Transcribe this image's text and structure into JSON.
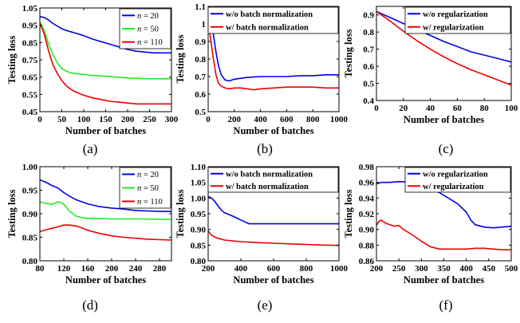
{
  "colors": {
    "blue": "#0000ee",
    "green": "#22ee22",
    "red": "#ee0000",
    "axis": "#000000"
  },
  "chart_data": [
    {
      "id": "a",
      "caption": "(a)",
      "type": "line",
      "xlabel": "Number of batches",
      "ylabel": "Testing loss",
      "xlim": [
        0,
        300
      ],
      "ylim": [
        0.45,
        1.05
      ],
      "xticks": [
        "0",
        "50",
        "100",
        "150",
        "200",
        "250",
        "300"
      ],
      "yticks": [
        "0.45",
        "0.55",
        "0.65",
        "0.75",
        "0.85",
        "0.95",
        "1.05"
      ],
      "legend_position": "top-right",
      "series": [
        {
          "name": "n = 20",
          "legend_italic_var": "n",
          "legend_rest": " = 20",
          "color": "blue",
          "x": [
            0,
            10,
            20,
            30,
            40,
            50,
            60,
            80,
            100,
            120,
            140,
            160,
            180,
            200,
            220,
            240,
            260,
            280,
            300
          ],
          "y": [
            1.0,
            0.995,
            0.98,
            0.96,
            0.945,
            0.93,
            0.92,
            0.905,
            0.89,
            0.87,
            0.855,
            0.84,
            0.825,
            0.81,
            0.8,
            0.795,
            0.79,
            0.79,
            0.79
          ]
        },
        {
          "name": "n = 50",
          "legend_italic_var": "n",
          "legend_rest": " = 50",
          "color": "green",
          "x": [
            0,
            10,
            20,
            30,
            40,
            50,
            60,
            70,
            80,
            100,
            120,
            150,
            200,
            250,
            300
          ],
          "y": [
            0.97,
            0.92,
            0.84,
            0.78,
            0.73,
            0.7,
            0.685,
            0.675,
            0.67,
            0.665,
            0.66,
            0.655,
            0.645,
            0.64,
            0.64
          ]
        },
        {
          "name": "n = 110",
          "legend_italic_var": "n",
          "legend_rest": " = 110",
          "color": "red",
          "x": [
            0,
            10,
            20,
            30,
            40,
            50,
            60,
            70,
            80,
            90,
            100,
            120,
            140,
            160,
            180,
            200,
            220,
            240,
            260,
            280,
            300
          ],
          "y": [
            0.96,
            0.9,
            0.8,
            0.72,
            0.67,
            0.63,
            0.6,
            0.58,
            0.565,
            0.555,
            0.545,
            0.53,
            0.52,
            0.51,
            0.505,
            0.5,
            0.495,
            0.495,
            0.495,
            0.495,
            0.495
          ]
        }
      ]
    },
    {
      "id": "b",
      "caption": "(b)",
      "type": "line",
      "xlabel": "Number of batches",
      "ylabel": "Testing loss",
      "xlim": [
        0,
        1000
      ],
      "ylim": [
        0.5,
        1.1
      ],
      "xticks": [
        "0",
        "200",
        "400",
        "600",
        "800",
        "1000"
      ],
      "yticks": [
        "0.5",
        "0.6",
        "0.7",
        "0.8",
        "0.9",
        "1",
        "1.1"
      ],
      "legend_position": "top-right",
      "series": [
        {
          "name": "w/o batch normalization",
          "color": "blue",
          "x": [
            0,
            20,
            40,
            60,
            80,
            100,
            130,
            160,
            200,
            250,
            300,
            400,
            500,
            600,
            700,
            800,
            900,
            1000
          ],
          "y": [
            1.04,
            1.01,
            0.94,
            0.84,
            0.76,
            0.71,
            0.68,
            0.675,
            0.685,
            0.69,
            0.695,
            0.7,
            0.7,
            0.7,
            0.705,
            0.705,
            0.71,
            0.71
          ]
        },
        {
          "name": "w/ batch normalization",
          "color": "red",
          "x": [
            0,
            20,
            40,
            60,
            80,
            100,
            130,
            160,
            200,
            250,
            300,
            350,
            400,
            500,
            600,
            700,
            800,
            900,
            1000
          ],
          "y": [
            1.0,
            0.91,
            0.8,
            0.71,
            0.66,
            0.645,
            0.635,
            0.63,
            0.635,
            0.635,
            0.63,
            0.625,
            0.63,
            0.635,
            0.64,
            0.64,
            0.64,
            0.635,
            0.635
          ]
        }
      ]
    },
    {
      "id": "c",
      "caption": "(c)",
      "type": "line",
      "xlabel": "Number of batches",
      "ylabel": "Testing loss",
      "xlim": [
        0,
        100
      ],
      "ylim": [
        0.4,
        0.95
      ],
      "xticks": [
        "0",
        "20",
        "40",
        "60",
        "80",
        "100"
      ],
      "yticks": [
        "0.4",
        "0.5",
        "0.6",
        "0.7",
        "0.8",
        "0.9"
      ],
      "legend_position": "top-right",
      "series": [
        {
          "name": "w/o regularization",
          "color": "blue",
          "x": [
            0,
            10,
            20,
            30,
            40,
            50,
            60,
            70,
            80,
            90,
            100
          ],
          "y": [
            0.92,
            0.885,
            0.85,
            0.815,
            0.78,
            0.745,
            0.715,
            0.685,
            0.665,
            0.645,
            0.625
          ]
        },
        {
          "name": "w/ regularization",
          "color": "red",
          "x": [
            0,
            10,
            20,
            30,
            40,
            50,
            60,
            70,
            80,
            90,
            100
          ],
          "y": [
            0.92,
            0.865,
            0.805,
            0.75,
            0.7,
            0.655,
            0.615,
            0.58,
            0.55,
            0.52,
            0.49
          ]
        }
      ]
    },
    {
      "id": "d",
      "caption": "(d)",
      "type": "line",
      "xlabel": "Number of batches",
      "ylabel": "Testing loss",
      "xlim": [
        80,
        300
      ],
      "ylim": [
        0.8,
        1.0
      ],
      "xticks": [
        "80",
        "120",
        "160",
        "200",
        "240",
        "280"
      ],
      "yticks": [
        "0.80",
        "0.85",
        "0.90",
        "0.95",
        "1.00"
      ],
      "legend_position": "top-right",
      "series": [
        {
          "name": "n = 20",
          "legend_italic_var": "n",
          "legend_rest": " = 20",
          "color": "blue",
          "x": [
            80,
            90,
            100,
            110,
            120,
            130,
            140,
            160,
            180,
            200,
            220,
            240,
            260,
            280,
            300
          ],
          "y": [
            0.972,
            0.967,
            0.96,
            0.955,
            0.945,
            0.937,
            0.93,
            0.921,
            0.915,
            0.912,
            0.91,
            0.907,
            0.906,
            0.905,
            0.905
          ]
        },
        {
          "name": "n = 50",
          "legend_italic_var": "n",
          "legend_rest": " = 50",
          "color": "green",
          "x": [
            80,
            90,
            100,
            110,
            115,
            120,
            130,
            140,
            150,
            160,
            180,
            200,
            240,
            280,
            300
          ],
          "y": [
            0.925,
            0.922,
            0.92,
            0.925,
            0.924,
            0.92,
            0.905,
            0.895,
            0.892,
            0.89,
            0.89,
            0.889,
            0.889,
            0.888,
            0.888
          ]
        },
        {
          "name": "n = 110",
          "legend_italic_var": "n",
          "legend_rest": " = 110",
          "color": "red",
          "x": [
            80,
            90,
            100,
            110,
            120,
            130,
            140,
            150,
            160,
            180,
            200,
            220,
            240,
            260,
            280,
            300
          ],
          "y": [
            0.862,
            0.866,
            0.869,
            0.872,
            0.876,
            0.876,
            0.874,
            0.87,
            0.865,
            0.858,
            0.853,
            0.85,
            0.848,
            0.846,
            0.845,
            0.844
          ]
        }
      ]
    },
    {
      "id": "e",
      "caption": "(e)",
      "type": "line",
      "xlabel": "Number of batches",
      "ylabel": "Testing loss",
      "xlim": [
        200,
        1000
      ],
      "ylim": [
        0.8,
        1.1
      ],
      "xticks": [
        "200",
        "400",
        "600",
        "800",
        "1000"
      ],
      "yticks": [
        "0.80",
        "0.85",
        "0.90",
        "0.95",
        "1.00",
        "1.05",
        "1.10"
      ],
      "legend_position": "top-right",
      "series": [
        {
          "name": "w/o batch normalization",
          "color": "blue",
          "x": [
            200,
            220,
            240,
            260,
            280,
            300,
            340,
            380,
            420,
            450,
            500,
            600,
            700,
            800,
            900,
            1000
          ],
          "y": [
            1.005,
            1.0,
            0.99,
            0.975,
            0.962,
            0.953,
            0.945,
            0.935,
            0.925,
            0.918,
            0.918,
            0.918,
            0.918,
            0.918,
            0.918,
            0.918
          ]
        },
        {
          "name": "w/ batch normalization",
          "color": "red",
          "x": [
            200,
            220,
            250,
            300,
            400,
            500,
            600,
            700,
            800,
            900,
            1000
          ],
          "y": [
            0.895,
            0.882,
            0.873,
            0.866,
            0.861,
            0.858,
            0.856,
            0.854,
            0.852,
            0.85,
            0.849
          ]
        }
      ]
    },
    {
      "id": "f",
      "caption": "(f)",
      "type": "line",
      "xlabel": "Number of batches",
      "ylabel": "Testing loss",
      "xlim": [
        200,
        500
      ],
      "ylim": [
        0.86,
        0.98
      ],
      "xticks": [
        "200",
        "250",
        "300",
        "350",
        "400",
        "450",
        "500"
      ],
      "yticks": [
        "0.86",
        "0.88",
        "0.90",
        "0.92",
        "0.94",
        "0.96",
        "0.98"
      ],
      "legend_position": "top-right",
      "series": [
        {
          "name": "w/o regularization",
          "color": "blue",
          "x": [
            200,
            210,
            230,
            250,
            280,
            300,
            320,
            340,
            360,
            380,
            400,
            410,
            420,
            440,
            460,
            480,
            500
          ],
          "y": [
            0.958,
            0.96,
            0.96,
            0.961,
            0.96,
            0.957,
            0.952,
            0.947,
            0.94,
            0.933,
            0.922,
            0.912,
            0.906,
            0.903,
            0.902,
            0.903,
            0.904
          ]
        },
        {
          "name": "w/ regularization",
          "color": "red",
          "x": [
            200,
            205,
            210,
            220,
            240,
            250,
            260,
            280,
            300,
            320,
            340,
            360,
            380,
            400,
            420,
            440,
            460,
            480,
            500
          ],
          "y": [
            0.905,
            0.91,
            0.912,
            0.908,
            0.904,
            0.905,
            0.9,
            0.893,
            0.885,
            0.878,
            0.875,
            0.875,
            0.875,
            0.875,
            0.876,
            0.876,
            0.875,
            0.874,
            0.874
          ]
        }
      ]
    }
  ]
}
